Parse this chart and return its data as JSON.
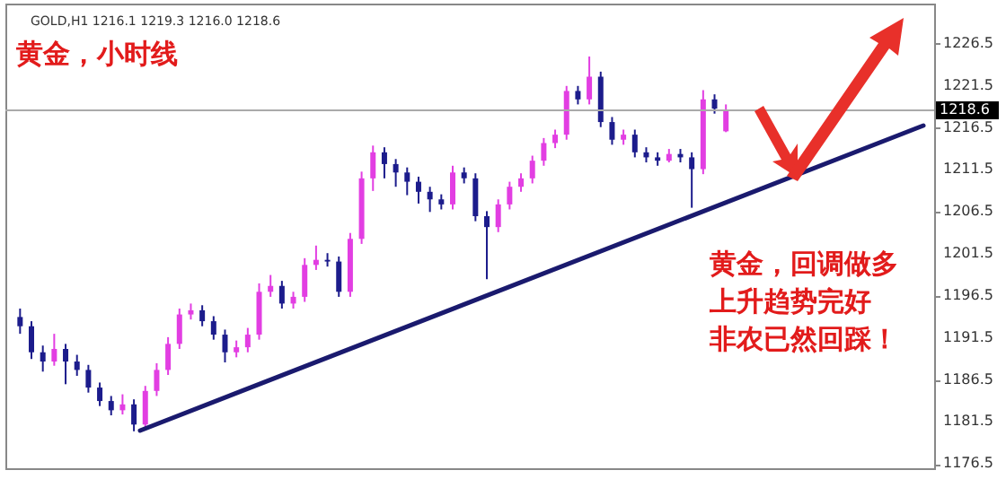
{
  "chart_data": {
    "type": "candlestick",
    "title": "黄金，小时线",
    "annotations": [
      "GOLD,H1  1216.1 1219.3 1216.0 1218.6",
      "黄金，回调做多",
      "上升趋势完好",
      "非农已然回踩！"
    ],
    "categories": [
      null,
      null,
      null,
      null,
      null,
      null,
      null,
      null,
      null,
      null,
      null,
      null,
      null,
      null,
      null,
      null,
      null,
      null,
      null,
      null,
      null,
      null,
      null,
      null,
      null,
      null,
      null,
      null,
      null,
      null,
      null,
      null,
      null,
      null,
      null,
      null,
      null,
      null,
      null,
      null,
      null,
      null,
      null,
      null,
      null,
      null,
      null,
      null,
      null,
      null,
      null,
      null,
      null,
      null,
      null,
      null,
      null,
      null,
      null,
      null,
      null,
      null,
      null,
      null,
      null,
      null,
      null,
      null,
      null,
      null,
      null,
      null,
      null,
      null,
      null,
      null,
      null,
      null,
      null,
      null
    ],
    "ohlc": [
      [
        1194.0,
        1195.0,
        1192.0,
        1192.9
      ],
      [
        1192.9,
        1193.5,
        1189.0,
        1189.8
      ],
      [
        1189.8,
        1190.6,
        1187.5,
        1188.7
      ],
      [
        1188.7,
        1192.0,
        1188.2,
        1190.2
      ],
      [
        1190.2,
        1190.8,
        1186.0,
        1188.7
      ],
      [
        1188.7,
        1189.5,
        1187.0,
        1187.7
      ],
      [
        1187.7,
        1188.3,
        1185.0,
        1185.6
      ],
      [
        1185.6,
        1186.2,
        1183.4,
        1184.0
      ],
      [
        1184.0,
        1184.6,
        1182.3,
        1182.9
      ],
      [
        1182.9,
        1184.8,
        1182.4,
        1183.6
      ],
      [
        1183.6,
        1184.2,
        1180.4,
        1181.2
      ],
      [
        1181.2,
        1185.8,
        1180.8,
        1185.2
      ],
      [
        1185.2,
        1188.5,
        1184.6,
        1187.7
      ],
      [
        1187.7,
        1191.6,
        1187.1,
        1190.8
      ],
      [
        1190.8,
        1195.0,
        1190.2,
        1194.3
      ],
      [
        1194.3,
        1195.6,
        1193.7,
        1194.8
      ],
      [
        1194.8,
        1195.4,
        1192.9,
        1193.5
      ],
      [
        1193.5,
        1194.1,
        1191.3,
        1191.9
      ],
      [
        1191.9,
        1192.5,
        1188.6,
        1189.8
      ],
      [
        1189.8,
        1191.2,
        1189.2,
        1190.4
      ],
      [
        1190.4,
        1192.7,
        1189.8,
        1191.9
      ],
      [
        1191.9,
        1198.0,
        1191.3,
        1197.0
      ],
      [
        1197.0,
        1199.0,
        1196.4,
        1197.7
      ],
      [
        1197.7,
        1198.3,
        1195.0,
        1195.6
      ],
      [
        1195.6,
        1197.0,
        1195.0,
        1196.4
      ],
      [
        1196.4,
        1201.0,
        1195.8,
        1200.2
      ],
      [
        1200.2,
        1202.5,
        1199.6,
        1200.8
      ],
      [
        1200.8,
        1201.6,
        1200.0,
        1200.6
      ],
      [
        1200.6,
        1201.2,
        1196.4,
        1197.0
      ],
      [
        1197.0,
        1204.0,
        1196.4,
        1203.3
      ],
      [
        1203.3,
        1211.3,
        1202.7,
        1210.5
      ],
      [
        1210.5,
        1214.4,
        1209.0,
        1213.6
      ],
      [
        1213.6,
        1214.2,
        1210.5,
        1212.2
      ],
      [
        1212.2,
        1212.8,
        1209.5,
        1211.2
      ],
      [
        1211.2,
        1211.8,
        1208.5,
        1210.1
      ],
      [
        1210.1,
        1210.7,
        1207.5,
        1208.9
      ],
      [
        1208.9,
        1209.5,
        1206.5,
        1208.0
      ],
      [
        1208.0,
        1208.6,
        1206.8,
        1207.4
      ],
      [
        1207.4,
        1212.0,
        1206.8,
        1211.2
      ],
      [
        1211.2,
        1211.8,
        1209.9,
        1210.5
      ],
      [
        1210.5,
        1211.1,
        1205.4,
        1206.0
      ],
      [
        1206.0,
        1206.6,
        1198.5,
        1204.7
      ],
      [
        1204.7,
        1208.0,
        1204.1,
        1207.4
      ],
      [
        1207.4,
        1210.1,
        1206.8,
        1209.5
      ],
      [
        1209.5,
        1211.1,
        1208.9,
        1210.5
      ],
      [
        1210.5,
        1213.2,
        1209.9,
        1212.6
      ],
      [
        1212.6,
        1215.3,
        1212.0,
        1214.7
      ],
      [
        1214.7,
        1216.3,
        1214.1,
        1215.7
      ],
      [
        1215.7,
        1221.5,
        1215.1,
        1220.9
      ],
      [
        1220.9,
        1221.5,
        1219.3,
        1219.9
      ],
      [
        1219.9,
        1225.0,
        1219.3,
        1222.6
      ],
      [
        1222.6,
        1223.2,
        1216.6,
        1217.2
      ],
      [
        1217.2,
        1217.8,
        1214.5,
        1215.1
      ],
      [
        1215.1,
        1216.3,
        1214.5,
        1215.7
      ],
      [
        1215.7,
        1216.3,
        1213.0,
        1213.6
      ],
      [
        1213.6,
        1214.2,
        1212.4,
        1213.0
      ],
      [
        1213.0,
        1213.6,
        1212.0,
        1212.6
      ],
      [
        1212.6,
        1214.0,
        1212.4,
        1213.4
      ],
      [
        1213.4,
        1214.0,
        1212.4,
        1213.0
      ],
      [
        1213.0,
        1213.6,
        1207.0,
        1211.6
      ],
      [
        1211.6,
        1221.0,
        1211.0,
        1219.9
      ],
      [
        1219.9,
        1220.5,
        1218.2,
        1218.8
      ],
      [
        1216.1,
        1219.3,
        1216.0,
        1218.6
      ],
      null,
      null,
      null,
      null,
      null,
      null,
      null,
      null,
      null,
      null,
      null,
      null,
      null,
      null,
      null,
      null,
      null
    ],
    "colors": [
      "#1c1c8c",
      "#1c1c8c",
      "#1c1c8c",
      "#e23ee2",
      "#1c1c8c",
      "#1c1c8c",
      "#1c1c8c",
      "#1c1c8c",
      "#1c1c8c",
      "#e23ee2",
      "#1c1c8c",
      "#e23ee2",
      "#e23ee2",
      "#e23ee2",
      "#e23ee2",
      "#e23ee2",
      "#1c1c8c",
      "#1c1c8c",
      "#1c1c8c",
      "#e23ee2",
      "#e23ee2",
      "#e23ee2",
      "#e23ee2",
      "#1c1c8c",
      "#e23ee2",
      "#e23ee2",
      "#e23ee2",
      "#1c1c8c",
      "#1c1c8c",
      "#e23ee2",
      "#e23ee2",
      "#e23ee2",
      "#1c1c8c",
      "#1c1c8c",
      "#1c1c8c",
      "#1c1c8c",
      "#1c1c8c",
      "#1c1c8c",
      "#e23ee2",
      "#1c1c8c",
      "#1c1c8c",
      "#1c1c8c",
      "#e23ee2",
      "#e23ee2",
      "#e23ee2",
      "#e23ee2",
      "#e23ee2",
      "#e23ee2",
      "#e23ee2",
      "#1c1c8c",
      "#e23ee2",
      "#1c1c8c",
      "#1c1c8c",
      "#e23ee2",
      "#1c1c8c",
      "#1c1c8c",
      "#1c1c8c",
      "#e23ee2",
      "#1c1c8c",
      "#1c1c8c",
      "#e23ee2",
      "#1c1c8c",
      "#e23ee2",
      null,
      null,
      null,
      null,
      null,
      null,
      null,
      null,
      null,
      null,
      null,
      null,
      null,
      null,
      null,
      null,
      null
    ],
    "ref_lines": [
      {
        "axis": "y",
        "value": 1218.6,
        "label": "1218.6",
        "color": "#aaaaaa"
      }
    ],
    "ylim": [
      1176,
      1231.3
    ],
    "yticks": [
      1176.5,
      1181.5,
      1186.5,
      1191.5,
      1196.5,
      1201.5,
      1206.5,
      1211.5,
      1216.5,
      1221.5,
      1226.5
    ],
    "tick_labels": "y",
    "grid": false
  }
}
